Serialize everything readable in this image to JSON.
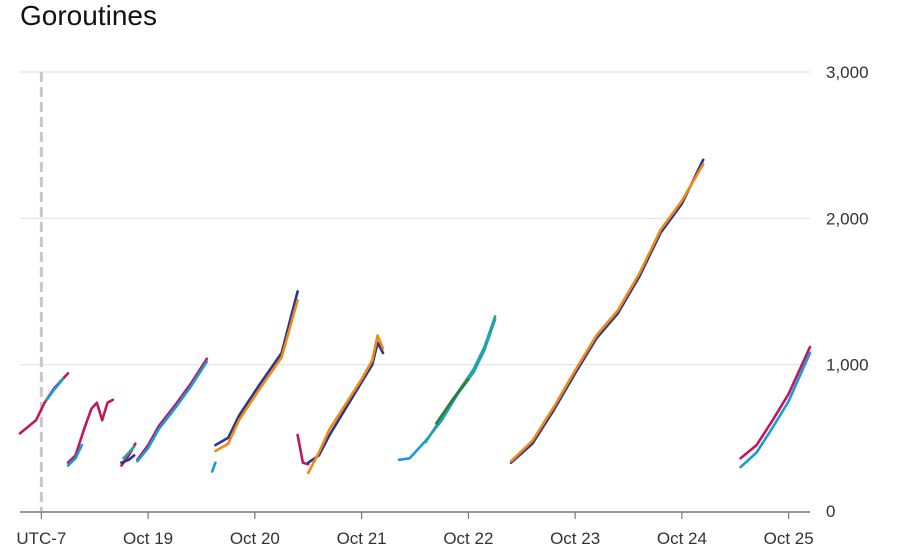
{
  "title": "Goroutines",
  "timezone_label": "UTC-7",
  "chart_data": {
    "type": "line",
    "title": "Goroutines",
    "xlabel": "",
    "ylabel": "",
    "x_unit": "days since Oct 18 00:00 (UTC-7)",
    "xlim": [
      -0.2,
      7.2
    ],
    "ylim": [
      0,
      3000
    ],
    "y_ticks": [
      0,
      1000,
      2000,
      3000
    ],
    "y_tick_labels": [
      "0",
      "1,000",
      "2,000",
      "3,000"
    ],
    "x_tick_labels": [
      {
        "label": "Oct 19",
        "x": 1
      },
      {
        "label": "Oct 20",
        "x": 2
      },
      {
        "label": "Oct 21",
        "x": 3
      },
      {
        "label": "Oct 22",
        "x": 4
      },
      {
        "label": "Oct 23",
        "x": 5
      },
      {
        "label": "Oct 24",
        "x": 6
      },
      {
        "label": "Oct 25",
        "x": 7
      }
    ],
    "grid": true,
    "legend": "none",
    "colors": {
      "magenta": "#c2185b",
      "blue": "#1a9bd7",
      "navy": "#283593",
      "orange": "#ef8a17",
      "green": "#2e7d32",
      "teal": "#26a69a"
    },
    "series": [
      {
        "color": "magenta",
        "points": [
          [
            -0.2,
            530
          ],
          [
            -0.05,
            620
          ],
          [
            0.03,
            740
          ],
          [
            0.12,
            840
          ],
          [
            0.25,
            940
          ]
        ]
      },
      {
        "color": "blue",
        "points": [
          [
            0.05,
            760
          ],
          [
            0.12,
            830
          ],
          [
            0.2,
            900
          ]
        ]
      },
      {
        "color": "magenta",
        "points": [
          [
            0.25,
            330
          ],
          [
            0.32,
            380
          ],
          [
            0.4,
            560
          ],
          [
            0.47,
            700
          ],
          [
            0.52,
            740
          ],
          [
            0.57,
            620
          ],
          [
            0.62,
            740
          ],
          [
            0.67,
            760
          ]
        ]
      },
      {
        "color": "blue",
        "points": [
          [
            0.25,
            310
          ],
          [
            0.32,
            360
          ],
          [
            0.38,
            450
          ]
        ]
      },
      {
        "color": "magenta",
        "points": [
          [
            0.75,
            310
          ],
          [
            0.82,
            380
          ],
          [
            0.88,
            460
          ]
        ]
      },
      {
        "color": "navy",
        "points": [
          [
            0.75,
            330
          ],
          [
            0.82,
            350
          ],
          [
            0.87,
            380
          ]
        ]
      },
      {
        "color": "teal",
        "points": [
          [
            0.77,
            360
          ],
          [
            0.82,
            400
          ],
          [
            0.87,
            440
          ]
        ]
      },
      {
        "color": "magenta",
        "points": [
          [
            0.9,
            350
          ],
          [
            1.0,
            450
          ],
          [
            1.1,
            580
          ],
          [
            1.25,
            720
          ],
          [
            1.4,
            870
          ],
          [
            1.55,
            1040
          ]
        ]
      },
      {
        "color": "blue",
        "points": [
          [
            0.9,
            340
          ],
          [
            1.0,
            430
          ],
          [
            1.1,
            560
          ],
          [
            1.25,
            700
          ],
          [
            1.4,
            850
          ],
          [
            1.55,
            1020
          ]
        ]
      },
      {
        "color": "blue",
        "points": [
          [
            1.6,
            270
          ],
          [
            1.63,
            330
          ]
        ]
      },
      {
        "color": "navy",
        "points": [
          [
            1.63,
            450
          ],
          [
            1.75,
            500
          ],
          [
            1.85,
            650
          ],
          [
            1.95,
            760
          ],
          [
            2.05,
            870
          ],
          [
            2.25,
            1080
          ],
          [
            2.4,
            1500
          ]
        ]
      },
      {
        "color": "orange",
        "points": [
          [
            1.63,
            410
          ],
          [
            1.75,
            460
          ],
          [
            1.85,
            620
          ],
          [
            1.95,
            730
          ],
          [
            2.05,
            840
          ],
          [
            2.25,
            1050
          ],
          [
            2.4,
            1440
          ]
        ]
      },
      {
        "color": "magenta",
        "points": [
          [
            2.4,
            520
          ],
          [
            2.45,
            330
          ],
          [
            2.5,
            320
          ]
        ]
      },
      {
        "color": "navy",
        "points": [
          [
            2.5,
            330
          ],
          [
            2.6,
            380
          ],
          [
            2.7,
            520
          ],
          [
            2.85,
            700
          ],
          [
            3.0,
            880
          ],
          [
            3.1,
            1000
          ],
          [
            3.15,
            1150
          ],
          [
            3.2,
            1080
          ]
        ]
      },
      {
        "color": "orange",
        "points": [
          [
            2.5,
            260
          ],
          [
            2.6,
            400
          ],
          [
            2.7,
            560
          ],
          [
            2.85,
            730
          ],
          [
            3.0,
            900
          ],
          [
            3.1,
            1030
          ],
          [
            3.15,
            1200
          ],
          [
            3.2,
            1110
          ]
        ]
      },
      {
        "color": "blue",
        "points": [
          [
            3.35,
            350
          ],
          [
            3.45,
            360
          ],
          [
            3.6,
            480
          ],
          [
            3.75,
            620
          ],
          [
            3.9,
            800
          ],
          [
            4.05,
            950
          ],
          [
            4.15,
            1100
          ],
          [
            4.25,
            1310
          ]
        ]
      },
      {
        "color": "teal",
        "points": [
          [
            3.6,
            470
          ],
          [
            3.75,
            640
          ],
          [
            3.9,
            810
          ],
          [
            4.05,
            970
          ],
          [
            4.15,
            1120
          ],
          [
            4.25,
            1330
          ]
        ]
      },
      {
        "color": "green",
        "points": [
          [
            3.7,
            600
          ],
          [
            3.85,
            760
          ],
          [
            4.0,
            900
          ]
        ]
      },
      {
        "color": "navy",
        "points": [
          [
            4.4,
            330
          ],
          [
            4.6,
            460
          ],
          [
            4.8,
            690
          ],
          [
            5.0,
            940
          ],
          [
            5.2,
            1180
          ],
          [
            5.4,
            1350
          ],
          [
            5.6,
            1600
          ],
          [
            5.8,
            1900
          ],
          [
            6.0,
            2100
          ],
          [
            6.2,
            2400
          ]
        ]
      },
      {
        "color": "orange",
        "points": [
          [
            4.4,
            340
          ],
          [
            4.6,
            480
          ],
          [
            4.8,
            710
          ],
          [
            5.0,
            960
          ],
          [
            5.2,
            1200
          ],
          [
            5.4,
            1370
          ],
          [
            5.6,
            1620
          ],
          [
            5.8,
            1920
          ],
          [
            6.0,
            2120
          ],
          [
            6.2,
            2370
          ]
        ]
      },
      {
        "color": "magenta",
        "points": [
          [
            6.55,
            360
          ],
          [
            6.7,
            450
          ],
          [
            6.85,
            620
          ],
          [
            7.0,
            800
          ],
          [
            7.2,
            1120
          ]
        ]
      },
      {
        "color": "blue",
        "points": [
          [
            6.55,
            300
          ],
          [
            6.7,
            400
          ],
          [
            6.85,
            570
          ],
          [
            7.0,
            750
          ],
          [
            7.2,
            1080
          ]
        ]
      }
    ],
    "annotations": [
      "UTC-7"
    ]
  }
}
